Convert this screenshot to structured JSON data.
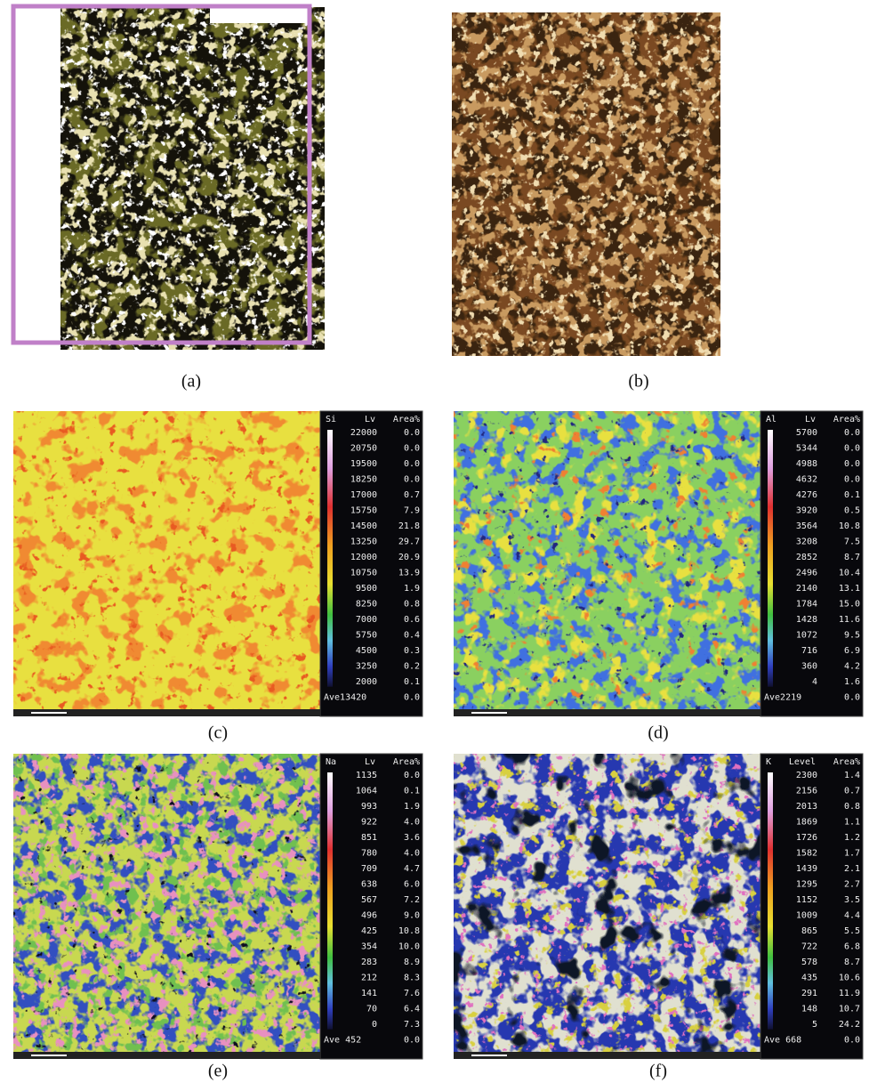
{
  "figure": {
    "panels": [
      {
        "caption": "(a)"
      },
      {
        "caption": "(b)"
      },
      {
        "caption": "(c)"
      },
      {
        "caption": "(d)"
      },
      {
        "caption": "(e)"
      },
      {
        "caption": "(f)"
      }
    ],
    "maps": [
      {
        "element": "Si",
        "level_header": "Lv",
        "area_header": "Area%",
        "levels": [
          "22000",
          "20750",
          "19500",
          "18250",
          "17000",
          "15750",
          "14500",
          "13250",
          "12000",
          "10750",
          "9500",
          "8250",
          "7000",
          "5750",
          "4500",
          "3250",
          "2000"
        ],
        "areas": [
          "0.0",
          "0.0",
          "0.0",
          "0.0",
          "0.7",
          "7.9",
          "21.8",
          "29.7",
          "20.9",
          "13.9",
          "1.9",
          "0.8",
          "0.6",
          "0.4",
          "0.3",
          "0.2",
          "0.1"
        ],
        "average": "Ave13420",
        "average_area": "0.0"
      },
      {
        "element": "Al",
        "level_header": "Lv",
        "area_header": "Area%",
        "levels": [
          "5700",
          "5344",
          "4988",
          "4632",
          "4276",
          "3920",
          "3564",
          "3208",
          "2852",
          "2496",
          "2140",
          "1784",
          "1428",
          "1072",
          "716",
          "360",
          "4"
        ],
        "areas": [
          "0.0",
          "0.0",
          "0.0",
          "0.0",
          "0.1",
          "0.5",
          "10.8",
          "7.5",
          "8.7",
          "10.4",
          "13.1",
          "15.0",
          "11.6",
          "9.5",
          "6.9",
          "4.2",
          "1.6"
        ],
        "average": "Ave2219",
        "average_area": "0.0"
      },
      {
        "element": "Na",
        "level_header": "Lv",
        "area_header": "Area%",
        "levels": [
          "1135",
          "1064",
          "993",
          "922",
          "851",
          "780",
          "709",
          "638",
          "567",
          "496",
          "425",
          "354",
          "283",
          "212",
          "141",
          "70",
          "0"
        ],
        "areas": [
          "0.0",
          "0.1",
          "1.9",
          "4.0",
          "3.6",
          "4.0",
          "4.7",
          "6.0",
          "7.2",
          "9.0",
          "10.8",
          "10.0",
          "8.9",
          "8.3",
          "7.6",
          "6.4",
          "7.3"
        ],
        "average": "Ave 452",
        "average_area": "0.0"
      },
      {
        "element": "K",
        "level_header": "Level",
        "area_header": "Area%",
        "levels": [
          "2300",
          "2156",
          "2013",
          "1869",
          "1726",
          "1582",
          "1439",
          "1295",
          "1152",
          "1009",
          "865",
          "722",
          "578",
          "435",
          "291",
          "148",
          "5"
        ],
        "areas": [
          "1.4",
          "0.7",
          "0.8",
          "1.1",
          "1.2",
          "1.7",
          "2.1",
          "2.7",
          "3.5",
          "4.4",
          "5.5",
          "6.8",
          "8.7",
          "10.6",
          "11.9",
          "10.7",
          "24.2"
        ],
        "average": "Ave 668",
        "average_area": "0.0"
      }
    ]
  }
}
